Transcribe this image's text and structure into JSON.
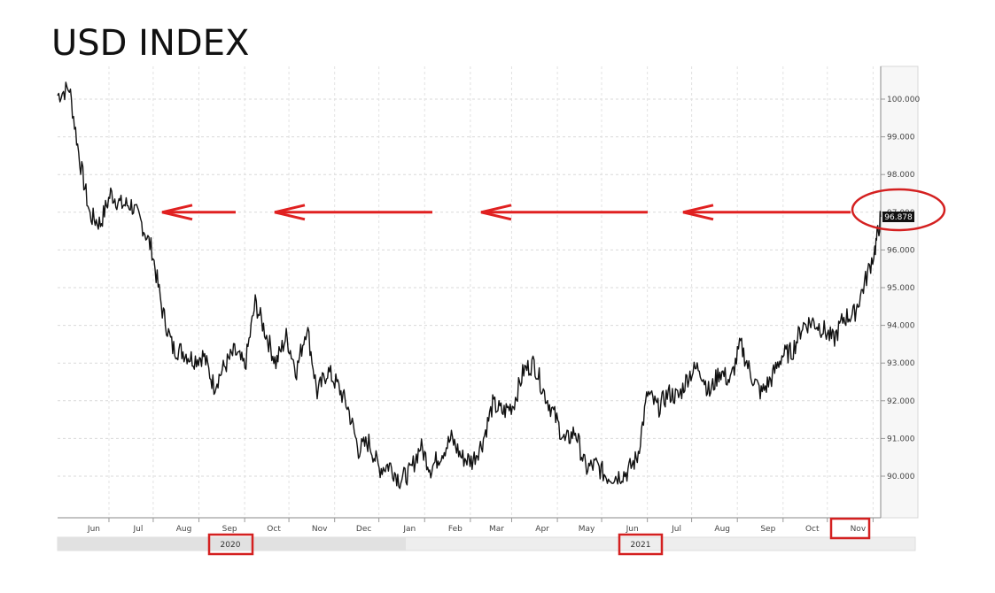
{
  "title": "USD INDEX",
  "chart_data": {
    "type": "line",
    "title": "USD INDEX",
    "xlabel": "",
    "ylabel": "",
    "x_tick_labels": [
      "Jun",
      "Jul",
      "Aug",
      "Sep",
      "Oct",
      "Nov",
      "Dec",
      "Jan",
      "Feb",
      "Mar",
      "Apr",
      "May",
      "Jun",
      "Jul",
      "Aug",
      "Sep",
      "Oct",
      "Nov"
    ],
    "year_labels": [
      "2020",
      "2021"
    ],
    "y_tick_labels": [
      "100.000",
      "99.000",
      "98.000",
      "97.000",
      "96.000",
      "95.000",
      "94.000",
      "93.000",
      "92.000",
      "91.000",
      "90.000"
    ],
    "ylim": [
      89.0,
      101.0
    ],
    "last_value_label": "96.878",
    "grid": true,
    "series": [
      {
        "values": [
          {
            "x": "2020-05-14",
            "y": 100.1
          },
          {
            "x": "2020-05-22",
            "y": 100.3
          },
          {
            "x": "2020-05-29",
            "y": 98.4
          },
          {
            "x": "2020-06-05",
            "y": 96.9
          },
          {
            "x": "2020-06-12",
            "y": 96.7
          },
          {
            "x": "2020-06-19",
            "y": 97.5
          },
          {
            "x": "2020-06-26",
            "y": 97.2
          },
          {
            "x": "2020-07-03",
            "y": 97.2
          },
          {
            "x": "2020-07-10",
            "y": 96.7
          },
          {
            "x": "2020-07-17",
            "y": 96.0
          },
          {
            "x": "2020-07-24",
            "y": 94.4
          },
          {
            "x": "2020-07-31",
            "y": 93.4
          },
          {
            "x": "2020-08-07",
            "y": 93.3
          },
          {
            "x": "2020-08-14",
            "y": 93.1
          },
          {
            "x": "2020-08-21",
            "y": 93.2
          },
          {
            "x": "2020-08-28",
            "y": 92.4
          },
          {
            "x": "2020-09-04",
            "y": 92.9
          },
          {
            "x": "2020-09-11",
            "y": 93.3
          },
          {
            "x": "2020-09-18",
            "y": 92.9
          },
          {
            "x": "2020-09-25",
            "y": 94.6
          },
          {
            "x": "2020-10-02",
            "y": 93.8
          },
          {
            "x": "2020-10-09",
            "y": 93.0
          },
          {
            "x": "2020-10-16",
            "y": 93.7
          },
          {
            "x": "2020-10-23",
            "y": 92.8
          },
          {
            "x": "2020-10-30",
            "y": 94.0
          },
          {
            "x": "2020-11-06",
            "y": 92.2
          },
          {
            "x": "2020-11-13",
            "y": 92.8
          },
          {
            "x": "2020-11-20",
            "y": 92.4
          },
          {
            "x": "2020-11-27",
            "y": 91.8
          },
          {
            "x": "2020-12-04",
            "y": 90.7
          },
          {
            "x": "2020-12-11",
            "y": 90.9
          },
          {
            "x": "2020-12-18",
            "y": 90.2
          },
          {
            "x": "2020-12-25",
            "y": 90.3
          },
          {
            "x": "2021-01-01",
            "y": 89.9
          },
          {
            "x": "2021-01-08",
            "y": 90.1
          },
          {
            "x": "2021-01-15",
            "y": 90.8
          },
          {
            "x": "2021-01-22",
            "y": 90.2
          },
          {
            "x": "2021-01-29",
            "y": 90.6
          },
          {
            "x": "2021-02-05",
            "y": 91.0
          },
          {
            "x": "2021-02-12",
            "y": 90.5
          },
          {
            "x": "2021-02-19",
            "y": 90.4
          },
          {
            "x": "2021-02-26",
            "y": 90.9
          },
          {
            "x": "2021-03-05",
            "y": 91.9
          },
          {
            "x": "2021-03-12",
            "y": 91.7
          },
          {
            "x": "2021-03-19",
            "y": 91.9
          },
          {
            "x": "2021-03-26",
            "y": 92.8
          },
          {
            "x": "2021-04-02",
            "y": 93.0
          },
          {
            "x": "2021-04-09",
            "y": 92.2
          },
          {
            "x": "2021-04-16",
            "y": 91.6
          },
          {
            "x": "2021-04-23",
            "y": 90.9
          },
          {
            "x": "2021-04-30",
            "y": 91.2
          },
          {
            "x": "2021-05-07",
            "y": 90.2
          },
          {
            "x": "2021-05-14",
            "y": 90.3
          },
          {
            "x": "2021-05-21",
            "y": 90.0
          },
          {
            "x": "2021-05-28",
            "y": 90.0
          },
          {
            "x": "2021-06-04",
            "y": 90.1
          },
          {
            "x": "2021-06-11",
            "y": 90.5
          },
          {
            "x": "2021-06-18",
            "y": 92.2
          },
          {
            "x": "2021-06-25",
            "y": 91.8
          },
          {
            "x": "2021-07-02",
            "y": 92.2
          },
          {
            "x": "2021-07-09",
            "y": 92.1
          },
          {
            "x": "2021-07-16",
            "y": 92.7
          },
          {
            "x": "2021-07-23",
            "y": 92.9
          },
          {
            "x": "2021-07-30",
            "y": 92.2
          },
          {
            "x": "2021-08-06",
            "y": 92.8
          },
          {
            "x": "2021-08-13",
            "y": 92.5
          },
          {
            "x": "2021-08-20",
            "y": 93.5
          },
          {
            "x": "2021-08-27",
            "y": 92.7
          },
          {
            "x": "2021-09-03",
            "y": 92.2
          },
          {
            "x": "2021-09-10",
            "y": 92.6
          },
          {
            "x": "2021-09-17",
            "y": 93.2
          },
          {
            "x": "2021-09-24",
            "y": 93.3
          },
          {
            "x": "2021-10-01",
            "y": 94.0
          },
          {
            "x": "2021-10-08",
            "y": 94.1
          },
          {
            "x": "2021-10-15",
            "y": 93.9
          },
          {
            "x": "2021-10-22",
            "y": 93.6
          },
          {
            "x": "2021-10-29",
            "y": 94.2
          },
          {
            "x": "2021-11-05",
            "y": 94.3
          },
          {
            "x": "2021-11-12",
            "y": 95.1
          },
          {
            "x": "2021-11-19",
            "y": 96.0
          },
          {
            "x": "2021-11-23",
            "y": 96.878
          }
        ]
      }
    ],
    "annotations": {
      "arrows_level": 97.0,
      "arrow_color": "#e02020",
      "highlight_color": "#d42020"
    }
  }
}
